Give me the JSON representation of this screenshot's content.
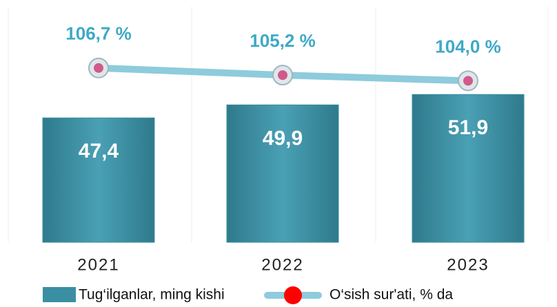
{
  "chart_data": {
    "type": "bar",
    "categories": [
      "2021",
      "2022",
      "2023"
    ],
    "ylim": [
      23.5,
      60
    ],
    "y2lim": [
      70,
      110
    ],
    "series": [
      {
        "name": "Tug‘ilganlar, ming kishi",
        "color": "#3a8fa3",
        "values": [
          47.4,
          49.9,
          51.9
        ],
        "value_labels": [
          "47,4",
          "49,9",
          "51,9"
        ]
      },
      {
        "name": "O‘sish sur'ati, % da",
        "type": "line",
        "axis": "y2",
        "color": "#8ecbdc",
        "marker_color": "#d05a8a",
        "values": [
          106.7,
          105.2,
          104.0
        ],
        "value_labels": [
          "106,7 %",
          "105,2 %",
          "104,0 %"
        ]
      }
    ]
  }
}
